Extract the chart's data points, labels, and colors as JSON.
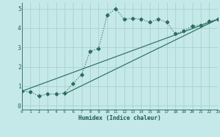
{
  "title": "",
  "xlabel": "Humidex (Indice chaleur)",
  "xlim": [
    0,
    23
  ],
  "ylim": [
    -0.2,
    5.3
  ],
  "xticks": [
    0,
    1,
    2,
    3,
    4,
    5,
    6,
    7,
    8,
    9,
    10,
    11,
    12,
    13,
    14,
    15,
    16,
    17,
    18,
    19,
    20,
    21,
    22,
    23
  ],
  "yticks": [
    0,
    1,
    2,
    3,
    4,
    5
  ],
  "bg_color": "#c5e8e8",
  "grid_color": "#a8d0d0",
  "line_color": "#2d6e60",
  "curve1_x": [
    0,
    1,
    2,
    3,
    4,
    5,
    6,
    7,
    8,
    9,
    10,
    11,
    12,
    13,
    14,
    15,
    16,
    17,
    18,
    19,
    20,
    21,
    22,
    23
  ],
  "curve1_y": [
    0.75,
    0.7,
    0.5,
    0.6,
    0.6,
    0.65,
    1.15,
    1.6,
    2.8,
    2.95,
    4.65,
    5.0,
    4.45,
    4.5,
    4.45,
    4.3,
    4.45,
    4.3,
    3.7,
    3.85,
    4.1,
    4.15,
    4.35,
    4.45
  ],
  "line1_x": [
    0,
    23
  ],
  "line1_y": [
    0.75,
    4.45
  ],
  "line2_x": [
    5,
    23
  ],
  "line2_y": [
    0.6,
    4.45
  ],
  "markersize": 2.5,
  "linewidth": 0.9
}
